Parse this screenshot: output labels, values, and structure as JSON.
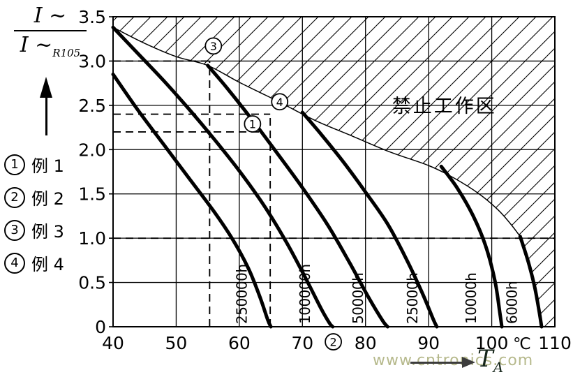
{
  "y_axis_label": {
    "numerator": "I ~",
    "denominator": "I ~",
    "denominator_sub": "R105"
  },
  "legend": [
    {
      "num": "1",
      "label": "例 1"
    },
    {
      "num": "2",
      "label": "例 2"
    },
    {
      "num": "3",
      "label": "例 3"
    },
    {
      "num": "4",
      "label": "例 4"
    }
  ],
  "x_title": {
    "symbol": "T",
    "sub": "A"
  },
  "watermark": "www.cntronics.com",
  "colors": {
    "ink": "#000000",
    "arrow": "#3c3c3c",
    "watermark": "#b6b98c"
  },
  "chart_data": {
    "type": "line",
    "title": "",
    "xlabel": "T_A (℃)",
    "ylabel": "I~ / I~R105",
    "xlim": [
      40,
      110
    ],
    "ylim": [
      0,
      3.5
    ],
    "grid": true,
    "x_ticks": [
      40,
      50,
      60,
      70,
      80,
      90,
      100,
      110
    ],
    "x_unit": {
      "text": "℃",
      "x": 104.8
    },
    "y_ticks": [
      0,
      0.5,
      1.0,
      1.5,
      2.0,
      2.5,
      3.0,
      3.5
    ],
    "forbidden_zone": {
      "label": "禁止工作区",
      "label_pos": {
        "x": 92.5,
        "y": 2.42
      },
      "boundary_points": [
        [
          40,
          3.38
        ],
        [
          45,
          3.2
        ],
        [
          50,
          3.05
        ],
        [
          55,
          2.95
        ],
        [
          60,
          2.76
        ],
        [
          66,
          2.55
        ],
        [
          72,
          2.33
        ],
        [
          78,
          2.15
        ],
        [
          84,
          1.97
        ],
        [
          90,
          1.82
        ],
        [
          94,
          1.68
        ],
        [
          98,
          1.5
        ],
        [
          101,
          1.32
        ],
        [
          103,
          1.16
        ],
        [
          104.5,
          1.02
        ]
      ]
    },
    "series": [
      {
        "name": "250000h",
        "label_x": 61.2,
        "points": [
          [
            40,
            2.85
          ],
          [
            44,
            2.44
          ],
          [
            48,
            2.06
          ],
          [
            52,
            1.68
          ],
          [
            56,
            1.3
          ],
          [
            59,
            0.98
          ],
          [
            61.5,
            0.65
          ],
          [
            63.3,
            0.33
          ],
          [
            64.5,
            0.08
          ],
          [
            65,
            0
          ]
        ]
      },
      {
        "name": "100000h",
        "label_x": 71.2,
        "points": [
          [
            40,
            3.38
          ],
          [
            44,
            3.08
          ],
          [
            48,
            2.78
          ],
          [
            52,
            2.46
          ],
          [
            56,
            2.12
          ],
          [
            60,
            1.76
          ],
          [
            64,
            1.36
          ],
          [
            67.5,
            0.95
          ],
          [
            70.5,
            0.55
          ],
          [
            73,
            0.2
          ],
          [
            74.3,
            0.04
          ],
          [
            74.8,
            0
          ]
        ]
      },
      {
        "name": "50000h",
        "label_x": 79.6,
        "points": [
          [
            55,
            2.95
          ],
          [
            58,
            2.7
          ],
          [
            62,
            2.34
          ],
          [
            66,
            1.96
          ],
          [
            70,
            1.57
          ],
          [
            74,
            1.15
          ],
          [
            77.5,
            0.72
          ],
          [
            80.5,
            0.33
          ],
          [
            82.7,
            0.07
          ],
          [
            83.5,
            0
          ]
        ]
      },
      {
        "name": "25000h",
        "label_x": 88.2,
        "points": [
          [
            70,
            2.42
          ],
          [
            73,
            2.17
          ],
          [
            76.5,
            1.86
          ],
          [
            80,
            1.52
          ],
          [
            83.5,
            1.16
          ],
          [
            86.5,
            0.76
          ],
          [
            89,
            0.38
          ],
          [
            90.7,
            0.09
          ],
          [
            91.3,
            0
          ]
        ]
      },
      {
        "name": "10000h",
        "label_x": 97.5,
        "points": [
          [
            92,
            1.81
          ],
          [
            94.5,
            1.57
          ],
          [
            97,
            1.26
          ],
          [
            99,
            0.92
          ],
          [
            100.5,
            0.52
          ],
          [
            101.3,
            0.15
          ],
          [
            101.6,
            0
          ]
        ]
      },
      {
        "name": "6000h",
        "label_x": 104.0,
        "points": [
          [
            104.5,
            1.02
          ],
          [
            105.8,
            0.73
          ],
          [
            106.8,
            0.45
          ],
          [
            107.5,
            0.18
          ],
          [
            107.9,
            0
          ]
        ]
      }
    ],
    "guide_lines": [
      {
        "type": "h",
        "y": 3.0,
        "x1": 40,
        "x2": 55.3
      },
      {
        "type": "h",
        "y": 2.4,
        "x1": 40,
        "x2": 64.9
      },
      {
        "type": "h",
        "y": 2.2,
        "x1": 40,
        "x2": 63.2
      },
      {
        "type": "h",
        "y": 1.0,
        "x1": 40,
        "x2": 110
      },
      {
        "type": "v",
        "x": 55.3,
        "y1": 0,
        "y2": 3.0
      },
      {
        "type": "v",
        "x": 64.9,
        "y1": 0,
        "y2": 2.4
      }
    ],
    "point_markers": [
      {
        "num": "1",
        "x": 62.1,
        "y": 2.29
      },
      {
        "num": "2",
        "x": 74.9,
        "y": -0.17
      },
      {
        "num": "3",
        "x": 55.9,
        "y": 3.17
      },
      {
        "num": "4",
        "x": 66.4,
        "y": 2.54
      }
    ]
  }
}
